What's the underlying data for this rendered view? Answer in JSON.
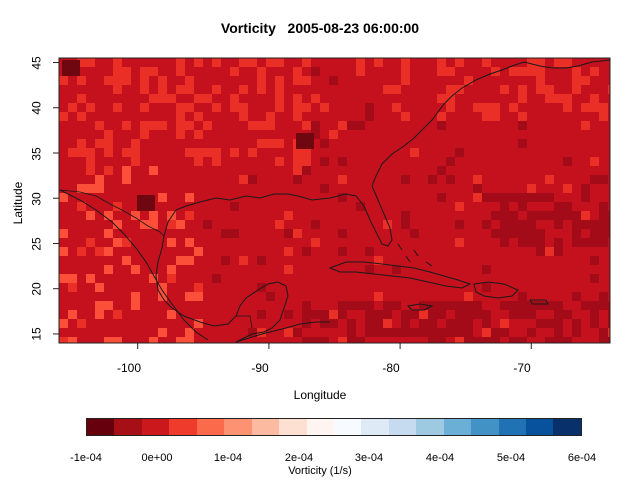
{
  "title": "Vorticity   2005-08-23 06:00:00",
  "map": {
    "xlabel": "Longitude",
    "ylabel": "Latitude",
    "x_ticks": [
      "-100",
      "-90",
      "-80",
      "-70"
    ],
    "y_ticks": [
      "15",
      "20",
      "25",
      "30",
      "35",
      "40",
      "45"
    ],
    "x_range": [
      -106,
      -64
    ],
    "y_range": [
      14,
      45.5
    ],
    "colors": {
      "base": "#c4111d",
      "light": "#ea2f26",
      "lighter": "#fb4f3a",
      "dark": "#a30b19",
      "darker": "#6e0710",
      "coast": "#1a1a1a"
    }
  },
  "colorbar": {
    "label": "Vorticity (1/s)",
    "tick_labels": [
      "-1e-04",
      "0e+00",
      "1e-04",
      "2e-04",
      "3e-04",
      "4e-04",
      "5e-04",
      "6e-04"
    ],
    "colors": [
      "#67000d",
      "#a50f15",
      "#cb181d",
      "#ef3b2c",
      "#fb6a4a",
      "#fc9272",
      "#fcbba1",
      "#fee0d2",
      "#fff5f0",
      "#f7fbff",
      "#deebf7",
      "#c6dbef",
      "#9ecae1",
      "#6baed6",
      "#4292c6",
      "#2171b5",
      "#08519c",
      "#08306b"
    ]
  }
}
